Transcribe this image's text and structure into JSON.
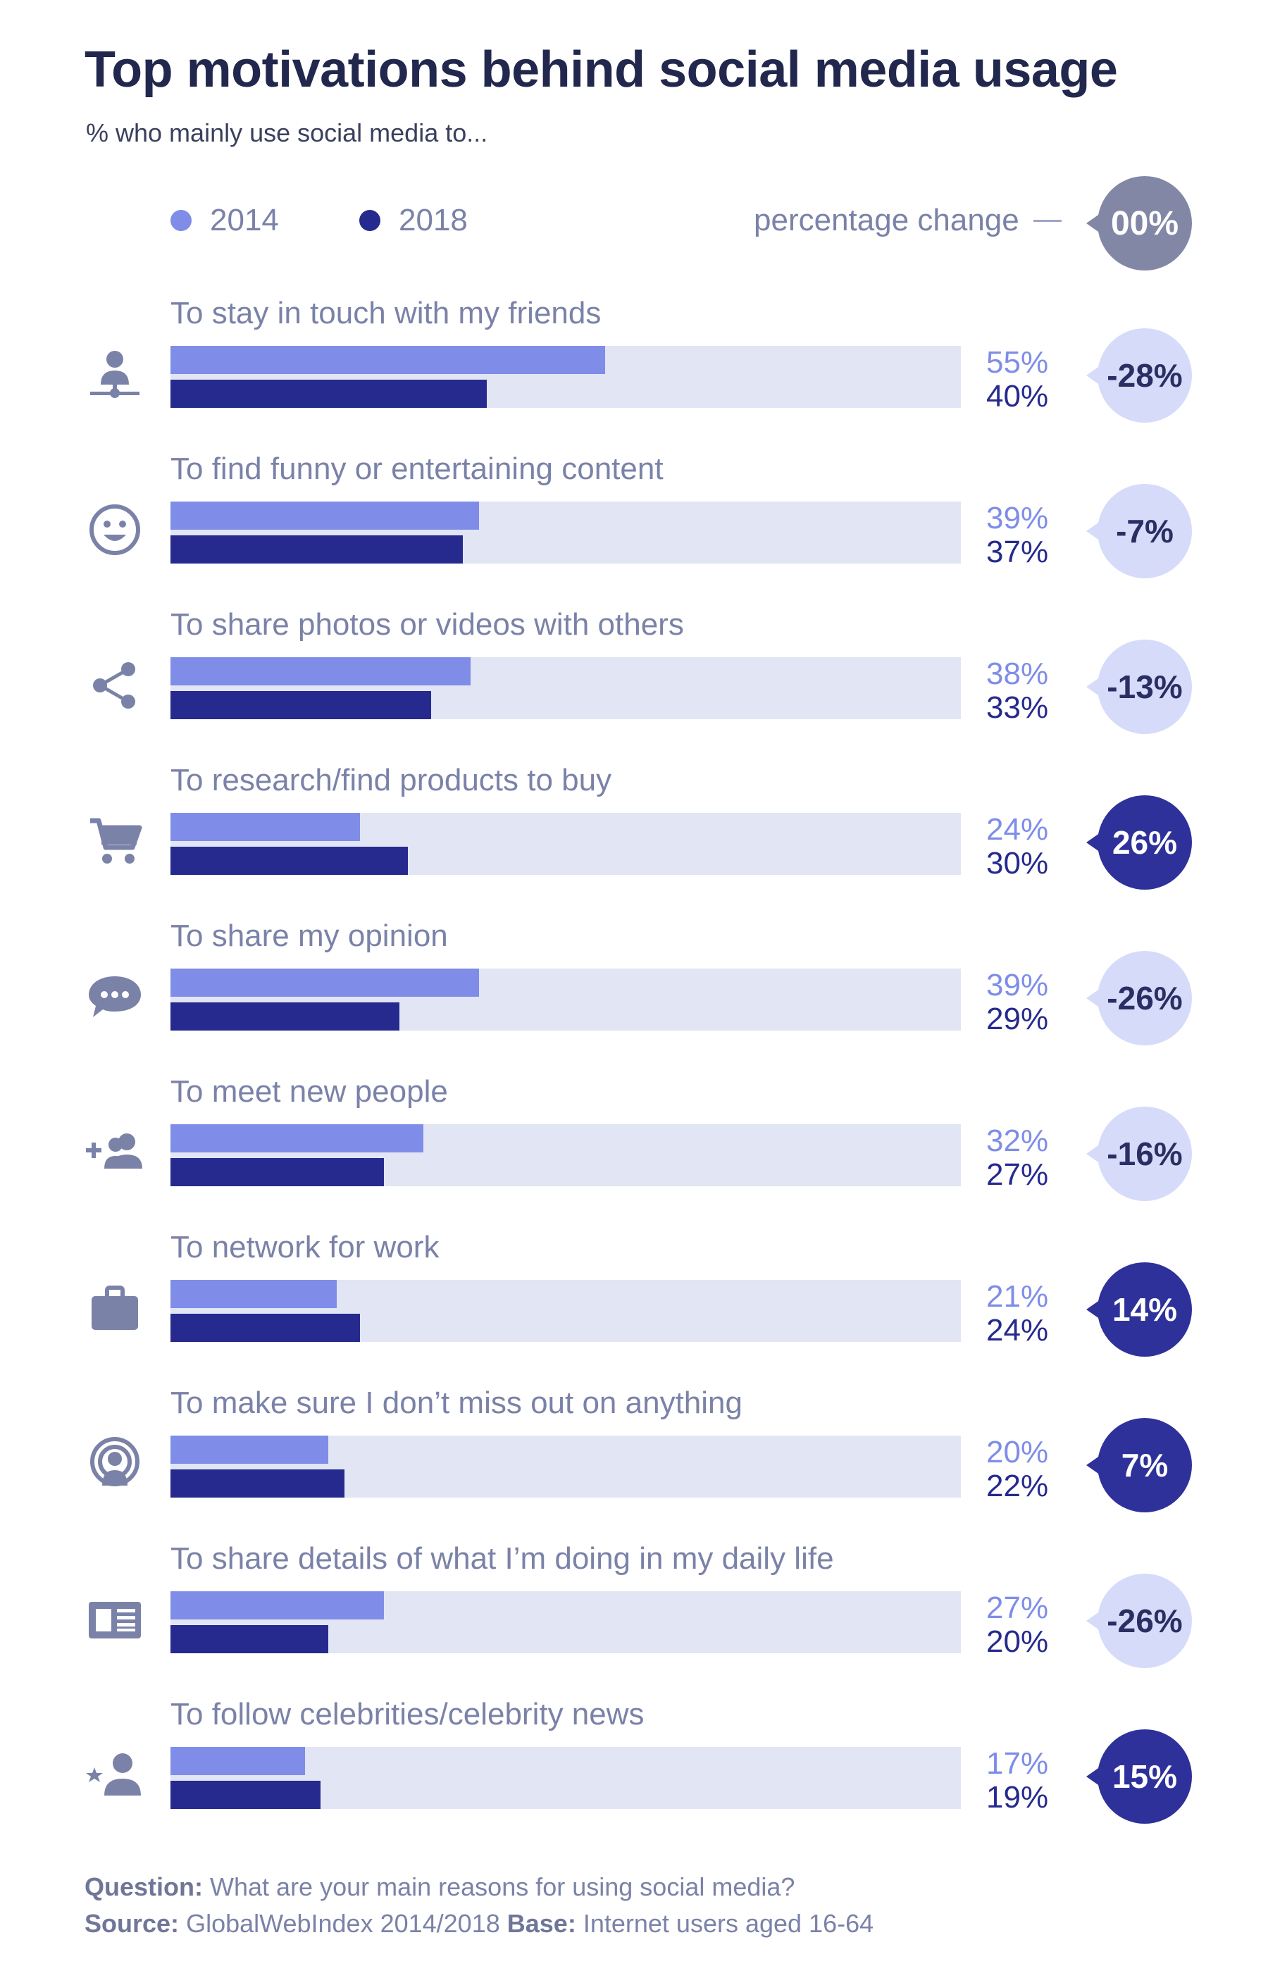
{
  "header": {
    "title": "Top motivations behind social media usage",
    "subtitle": "% who mainly use social media to..."
  },
  "legend": {
    "series_2014": "2014",
    "series_2018": "2018",
    "change_label": "percentage change",
    "change_example": "00%"
  },
  "colors": {
    "color_2014": "#7f8de8",
    "color_2018": "#262a8e",
    "bar_track": "#e1e5f4",
    "badge_decrease": "#d6dbfa",
    "badge_increase": "#2e319a",
    "badge_legend": "#8287a6"
  },
  "chart_data": {
    "type": "bar",
    "orientation": "horizontal",
    "title": "Top motivations behind social media usage",
    "subtitle": "% who mainly use social media to...",
    "xlim": [
      0,
      100
    ],
    "grid": false,
    "legend_position": "top-left",
    "categories": [
      "To stay in touch with my friends",
      "To find funny or entertaining content",
      "To share photos or videos with others",
      "To research/find products to buy",
      "To share my opinion",
      "To meet new people",
      "To network for work",
      "To make sure I don’t miss out on anything",
      "To share details of what I’m doing in my daily life",
      "To follow celebrities/celebrity news"
    ],
    "series": [
      {
        "name": "2014",
        "values": [
          55,
          39,
          38,
          24,
          39,
          32,
          21,
          20,
          27,
          17
        ]
      },
      {
        "name": "2018",
        "values": [
          40,
          37,
          33,
          30,
          29,
          27,
          24,
          22,
          20,
          19
        ]
      }
    ],
    "value_labels_2014": [
      "55%",
      "39%",
      "38%",
      "24%",
      "39%",
      "32%",
      "21%",
      "20%",
      "27%",
      "17%"
    ],
    "value_labels_2018": [
      "40%",
      "37%",
      "33%",
      "30%",
      "29%",
      "27%",
      "24%",
      "22%",
      "20%",
      "19%"
    ],
    "percentage_change": [
      -28,
      -7,
      -13,
      26,
      -26,
      -16,
      14,
      7,
      -26,
      15
    ],
    "percentage_change_labels": [
      "-28%",
      "-7%",
      "-13%",
      "26%",
      "-26%",
      "-16%",
      "14%",
      "7%",
      "-26%",
      "15%"
    ],
    "icons": [
      "person-network-icon",
      "smiley-face-icon",
      "share-icon",
      "shopping-cart-icon",
      "chat-bubble-icon",
      "add-people-icon",
      "briefcase-icon",
      "podcast-icon",
      "news-feed-icon",
      "celebrity-star-person-icon"
    ]
  },
  "footer": {
    "question_label": "Question:",
    "question_text": "What are your main reasons for using social media?",
    "source_label": "Source:",
    "source_text": "GlobalWebIndex 2014/2018",
    "base_label": "Base:",
    "base_text": "Internet users aged 16-64"
  }
}
